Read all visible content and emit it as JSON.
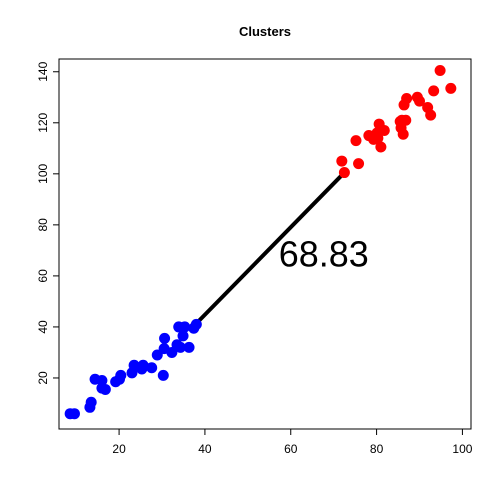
{
  "chart_data": {
    "type": "scatter",
    "title": "Clusters",
    "xlabel": "",
    "ylabel": "",
    "xlim": [
      6,
      102
    ],
    "ylim": [
      0,
      145
    ],
    "xticks": [
      20,
      40,
      60,
      80,
      100
    ],
    "yticks": [
      20,
      40,
      60,
      80,
      100,
      120,
      140
    ],
    "grid": false,
    "series": [
      {
        "color": "#0000ff",
        "points": [
          [
            8.6,
            6
          ],
          [
            9.6,
            6
          ],
          [
            13.2,
            8.5
          ],
          [
            13.5,
            10.5
          ],
          [
            14.4,
            19.5
          ],
          [
            16,
            19
          ],
          [
            16,
            16
          ],
          [
            16.8,
            15.5
          ],
          [
            19.2,
            18.5
          ],
          [
            20.1,
            19.5
          ],
          [
            20.4,
            21
          ],
          [
            23,
            22
          ],
          [
            23.5,
            25
          ],
          [
            25.3,
            23.5
          ],
          [
            25.6,
            25
          ],
          [
            27.6,
            24
          ],
          [
            28.9,
            29
          ],
          [
            30.3,
            21
          ],
          [
            30.5,
            31.5
          ],
          [
            30.6,
            35.5
          ],
          [
            32.3,
            30
          ],
          [
            33.5,
            33
          ],
          [
            33.9,
            40
          ],
          [
            34.3,
            32
          ],
          [
            34.9,
            36.5
          ],
          [
            35.3,
            40
          ],
          [
            36.3,
            32
          ],
          [
            37.4,
            39.5
          ],
          [
            38,
            41
          ]
        ]
      },
      {
        "color": "#ff0000",
        "points": [
          [
            71.9,
            105
          ],
          [
            72.5,
            100.5
          ],
          [
            75.2,
            113
          ],
          [
            75.8,
            104
          ],
          [
            78.2,
            115
          ],
          [
            79.3,
            113.5
          ],
          [
            80.1,
            116
          ],
          [
            80.3,
            114
          ],
          [
            80.6,
            119.5
          ],
          [
            81,
            110.5
          ],
          [
            81.8,
            117
          ],
          [
            85.5,
            120.5
          ],
          [
            85.7,
            118
          ],
          [
            85.9,
            121
          ],
          [
            86.2,
            115.5
          ],
          [
            86.4,
            127
          ],
          [
            86.8,
            121
          ],
          [
            87,
            129.5
          ],
          [
            89.5,
            130
          ],
          [
            90,
            128.5
          ],
          [
            91.9,
            126
          ],
          [
            92.6,
            123
          ],
          [
            93.3,
            132.5
          ],
          [
            94.8,
            140.5
          ],
          [
            97.3,
            133.5
          ]
        ]
      }
    ],
    "segment": {
      "from": [
        37.5,
        40.5
      ],
      "to": [
        72.5,
        100.5
      ],
      "color": "#000000"
    },
    "annotation": {
      "text": "68.83",
      "x": 57.2,
      "y": 68.5
    }
  }
}
